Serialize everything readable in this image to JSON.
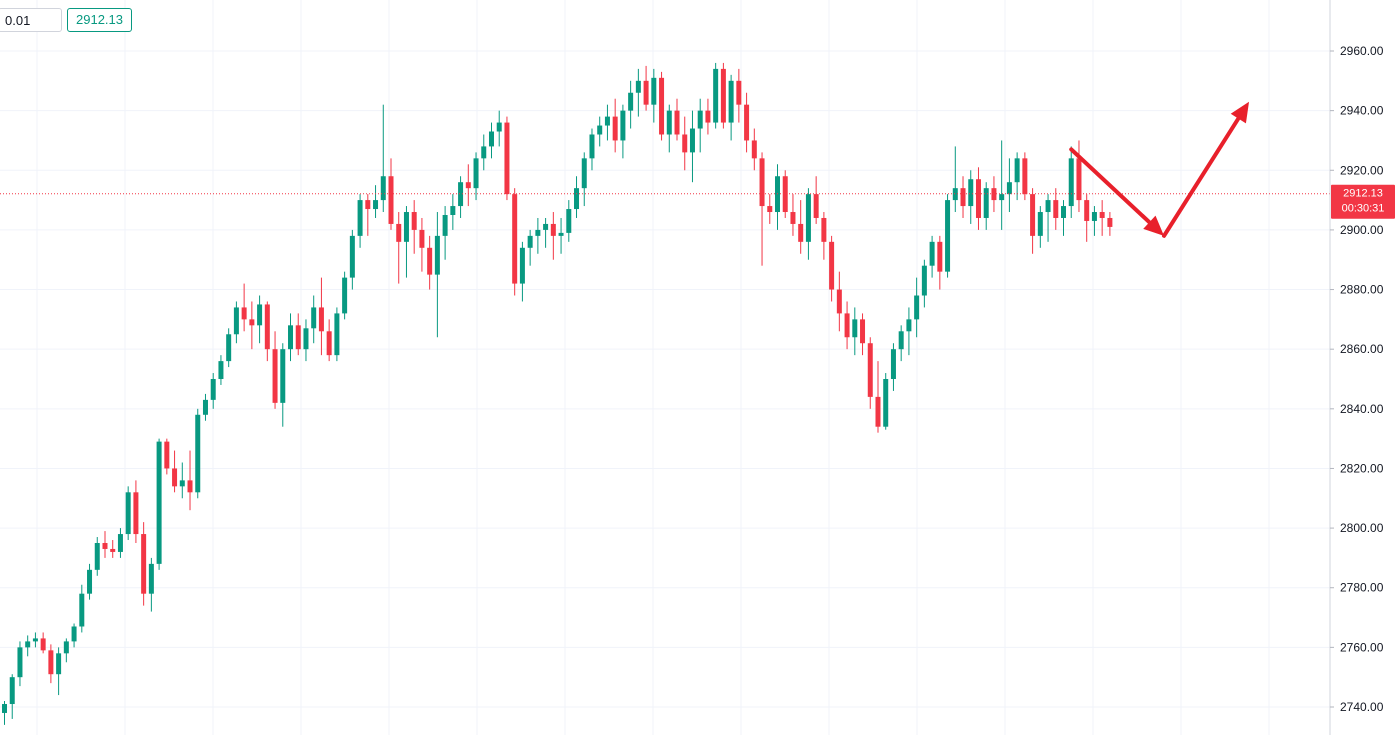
{
  "toolbar": {
    "quantity": "0.01",
    "price": "2912.13"
  },
  "current_price": {
    "label": "2912.13",
    "countdown": "00:30:31",
    "value": 2912.13
  },
  "colors": {
    "up": "#089981",
    "down": "#f23645",
    "grid": "#f0f3fa",
    "arrow": "#e8202b"
  },
  "chart_data": {
    "type": "candlestick",
    "ylim": [
      2734,
      2972
    ],
    "yticks": [
      2740,
      2760,
      2780,
      2800,
      2820,
      2840,
      2860,
      2880,
      2900,
      2920,
      2940,
      2960
    ],
    "ytick_labels": [
      "2740.00",
      "2760.00",
      "2780.00",
      "2800.00",
      "2820.00",
      "2840.00",
      "2860.00",
      "2880.00",
      "2900.00",
      "2920.00",
      "2940.00",
      "2960.00"
    ],
    "grid": true,
    "candles": [
      [
        2738,
        2742,
        2734,
        2741
      ],
      [
        2741,
        2751,
        2736,
        2750
      ],
      [
        2750,
        2762,
        2747,
        2760
      ],
      [
        2760,
        2764,
        2757,
        2762
      ],
      [
        2762,
        2765,
        2760,
        2763
      ],
      [
        2763,
        2765,
        2758,
        2759
      ],
      [
        2759,
        2761,
        2748,
        2751
      ],
      [
        2751,
        2760,
        2744,
        2758
      ],
      [
        2758,
        2763,
        2755,
        2762
      ],
      [
        2762,
        2768,
        2760,
        2767
      ],
      [
        2767,
        2781,
        2765,
        2778
      ],
      [
        2778,
        2788,
        2776,
        2786
      ],
      [
        2786,
        2797,
        2784,
        2795
      ],
      [
        2795,
        2799,
        2790,
        2793
      ],
      [
        2793,
        2796,
        2790,
        2792
      ],
      [
        2792,
        2800,
        2790,
        2798
      ],
      [
        2798,
        2814,
        2796,
        2812
      ],
      [
        2812,
        2816,
        2795,
        2798
      ],
      [
        2798,
        2802,
        2774,
        2778
      ],
      [
        2778,
        2790,
        2772,
        2788
      ],
      [
        2788,
        2830,
        2786,
        2829
      ],
      [
        2829,
        2830,
        2818,
        2820
      ],
      [
        2820,
        2826,
        2812,
        2814
      ],
      [
        2814,
        2822,
        2810,
        2816
      ],
      [
        2816,
        2826,
        2806,
        2812
      ],
      [
        2812,
        2840,
        2810,
        2838
      ],
      [
        2838,
        2845,
        2836,
        2843
      ],
      [
        2843,
        2852,
        2840,
        2850
      ],
      [
        2850,
        2858,
        2848,
        2856
      ],
      [
        2856,
        2867,
        2854,
        2865
      ],
      [
        2865,
        2876,
        2862,
        2874
      ],
      [
        2874,
        2882,
        2866,
        2870
      ],
      [
        2870,
        2876,
        2860,
        2868
      ],
      [
        2868,
        2878,
        2862,
        2875
      ],
      [
        2875,
        2876,
        2856,
        2860
      ],
      [
        2860,
        2866,
        2840,
        2842
      ],
      [
        2842,
        2862,
        2834,
        2860
      ],
      [
        2860,
        2872,
        2856,
        2868
      ],
      [
        2868,
        2872,
        2858,
        2860
      ],
      [
        2860,
        2870,
        2856,
        2867
      ],
      [
        2867,
        2878,
        2862,
        2874
      ],
      [
        2874,
        2884,
        2858,
        2866
      ],
      [
        2866,
        2870,
        2856,
        2858
      ],
      [
        2858,
        2874,
        2856,
        2872
      ],
      [
        2872,
        2886,
        2870,
        2884
      ],
      [
        2884,
        2900,
        2880,
        2898
      ],
      [
        2898,
        2912,
        2894,
        2910
      ],
      [
        2910,
        2912,
        2898,
        2907
      ],
      [
        2907,
        2915,
        2904,
        2910
      ],
      [
        2910,
        2942,
        2906,
        2918
      ],
      [
        2918,
        2924,
        2900,
        2902
      ],
      [
        2902,
        2906,
        2882,
        2896
      ],
      [
        2896,
        2908,
        2884,
        2906
      ],
      [
        2906,
        2910,
        2892,
        2900
      ],
      [
        2900,
        2904,
        2886,
        2894
      ],
      [
        2894,
        2898,
        2880,
        2885
      ],
      [
        2885,
        2906,
        2864,
        2898
      ],
      [
        2898,
        2908,
        2890,
        2905
      ],
      [
        2905,
        2912,
        2900,
        2908
      ],
      [
        2908,
        2918,
        2904,
        2916
      ],
      [
        2916,
        2922,
        2908,
        2914
      ],
      [
        2914,
        2926,
        2910,
        2924
      ],
      [
        2924,
        2932,
        2920,
        2928
      ],
      [
        2928,
        2936,
        2924,
        2933
      ],
      [
        2933,
        2940,
        2928,
        2936
      ],
      [
        2936,
        2938,
        2910,
        2912
      ],
      [
        2912,
        2914,
        2878,
        2882
      ],
      [
        2882,
        2896,
        2876,
        2894
      ],
      [
        2894,
        2900,
        2888,
        2898
      ],
      [
        2898,
        2904,
        2892,
        2900
      ],
      [
        2900,
        2904,
        2894,
        2902
      ],
      [
        2902,
        2906,
        2890,
        2898
      ],
      [
        2898,
        2904,
        2892,
        2899
      ],
      [
        2899,
        2910,
        2896,
        2907
      ],
      [
        2907,
        2918,
        2904,
        2914
      ],
      [
        2914,
        2926,
        2908,
        2924
      ],
      [
        2924,
        2934,
        2920,
        2932
      ],
      [
        2932,
        2938,
        2928,
        2935
      ],
      [
        2935,
        2942,
        2930,
        2938
      ],
      [
        2938,
        2944,
        2926,
        2930
      ],
      [
        2930,
        2942,
        2924,
        2940
      ],
      [
        2940,
        2950,
        2934,
        2946
      ],
      [
        2946,
        2954,
        2938,
        2950
      ],
      [
        2950,
        2955,
        2940,
        2942
      ],
      [
        2942,
        2954,
        2936,
        2951
      ],
      [
        2951,
        2953,
        2930,
        2932
      ],
      [
        2932,
        2942,
        2926,
        2940
      ],
      [
        2940,
        2944,
        2930,
        2932
      ],
      [
        2932,
        2938,
        2920,
        2926
      ],
      [
        2926,
        2940,
        2916,
        2934
      ],
      [
        2934,
        2944,
        2926,
        2940
      ],
      [
        2940,
        2944,
        2932,
        2936
      ],
      [
        2936,
        2956,
        2934,
        2954
      ],
      [
        2954,
        2956,
        2934,
        2936
      ],
      [
        2936,
        2952,
        2930,
        2950
      ],
      [
        2950,
        2954,
        2936,
        2942
      ],
      [
        2942,
        2946,
        2926,
        2930
      ],
      [
        2930,
        2934,
        2920,
        2924
      ],
      [
        2924,
        2926,
        2888,
        2908
      ],
      [
        2908,
        2912,
        2902,
        2906
      ],
      [
        2906,
        2922,
        2900,
        2918
      ],
      [
        2918,
        2920,
        2904,
        2906
      ],
      [
        2906,
        2912,
        2898,
        2902
      ],
      [
        2902,
        2910,
        2892,
        2896
      ],
      [
        2896,
        2914,
        2890,
        2912
      ],
      [
        2912,
        2918,
        2902,
        2904
      ],
      [
        2904,
        2906,
        2890,
        2896
      ],
      [
        2896,
        2898,
        2876,
        2880
      ],
      [
        2880,
        2886,
        2866,
        2872
      ],
      [
        2872,
        2876,
        2860,
        2864
      ],
      [
        2864,
        2874,
        2858,
        2870
      ],
      [
        2870,
        2872,
        2858,
        2862
      ],
      [
        2862,
        2864,
        2840,
        2844
      ],
      [
        2844,
        2856,
        2832,
        2834
      ],
      [
        2834,
        2852,
        2833,
        2850
      ],
      [
        2850,
        2862,
        2846,
        2860
      ],
      [
        2860,
        2868,
        2856,
        2866
      ],
      [
        2866,
        2874,
        2858,
        2870
      ],
      [
        2870,
        2884,
        2864,
        2878
      ],
      [
        2878,
        2890,
        2874,
        2888
      ],
      [
        2888,
        2898,
        2884,
        2896
      ],
      [
        2896,
        2898,
        2880,
        2886
      ],
      [
        2886,
        2912,
        2884,
        2910
      ],
      [
        2910,
        2928,
        2906,
        2914
      ],
      [
        2914,
        2918,
        2904,
        2908
      ],
      [
        2908,
        2920,
        2902,
        2917
      ],
      [
        2917,
        2921,
        2900,
        2904
      ],
      [
        2904,
        2916,
        2900,
        2914
      ],
      [
        2914,
        2918,
        2906,
        2910
      ],
      [
        2910,
        2930,
        2900,
        2912
      ],
      [
        2912,
        2924,
        2906,
        2916
      ],
      [
        2916,
        2926,
        2910,
        2924
      ],
      [
        2924,
        2926,
        2910,
        2912
      ],
      [
        2912,
        2914,
        2892,
        2898
      ],
      [
        2898,
        2908,
        2894,
        2906
      ],
      [
        2906,
        2912,
        2896,
        2910
      ],
      [
        2910,
        2914,
        2900,
        2904
      ],
      [
        2904,
        2910,
        2898,
        2908
      ],
      [
        2908,
        2928,
        2904,
        2924
      ],
      [
        2924,
        2930,
        2906,
        2910
      ],
      [
        2910,
        2912,
        2896,
        2903
      ],
      [
        2903,
        2908,
        2898,
        2906
      ],
      [
        2906,
        2910,
        2898,
        2904
      ],
      [
        2904,
        2906,
        2898,
        2901
      ]
    ],
    "arrows": [
      {
        "from": [
          138,
          2927
        ],
        "to": [
          150,
          2898
        ]
      },
      {
        "from": [
          150,
          2898
        ],
        "to": [
          161,
          2943
        ]
      }
    ]
  }
}
